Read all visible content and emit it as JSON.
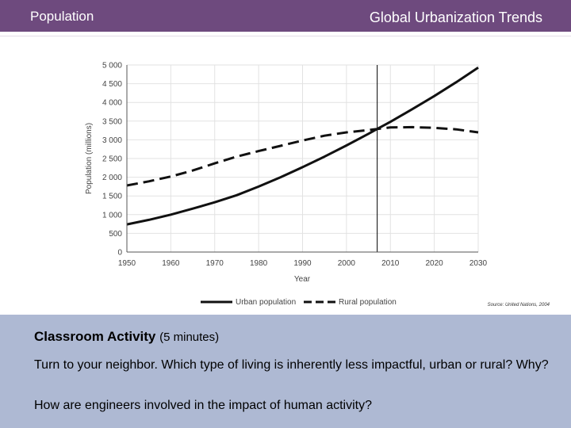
{
  "header": {
    "left_title": "Population",
    "right_title": "Global Urbanization Trends"
  },
  "chart_data": {
    "type": "line",
    "xlabel": "Year",
    "ylabel": "Population (millions)",
    "xlim": [
      1950,
      2030
    ],
    "ylim": [
      0,
      5000
    ],
    "x_ticks": [
      "1950",
      "1960",
      "1970",
      "1980",
      "1990",
      "2000",
      "2010",
      "2020",
      "2030"
    ],
    "y_ticks": [
      "0",
      "500",
      "1 000",
      "1 500",
      "2 000",
      "2 500",
      "3 000",
      "3 500",
      "4 000",
      "4 500",
      "5 000"
    ],
    "marker_year": 2007,
    "series": [
      {
        "name": "Urban population",
        "style": "solid",
        "x": [
          1950,
          1955,
          1960,
          1965,
          1970,
          1975,
          1980,
          1985,
          1990,
          1995,
          2000,
          2005,
          2007,
          2010,
          2015,
          2020,
          2025,
          2030
        ],
        "y": [
          740,
          860,
          1000,
          1160,
          1330,
          1520,
          1750,
          2000,
          2270,
          2550,
          2850,
          3160,
          3290,
          3480,
          3820,
          4170,
          4540,
          4930
        ]
      },
      {
        "name": "Rural population",
        "style": "dashed",
        "x": [
          1950,
          1955,
          1960,
          1965,
          1970,
          1975,
          1980,
          1985,
          1990,
          1995,
          2000,
          2005,
          2007,
          2010,
          2015,
          2020,
          2025,
          2030
        ],
        "y": [
          1780,
          1890,
          2020,
          2180,
          2370,
          2550,
          2700,
          2840,
          2980,
          3110,
          3200,
          3260,
          3290,
          3330,
          3340,
          3320,
          3280,
          3200
        ]
      }
    ],
    "source": "Source: United Nations, 2004",
    "legend_position": "bottom"
  },
  "activity": {
    "title": "Classroom Activity",
    "title_suffix": "(5 minutes)",
    "question1": "Turn to your neighbor. Which type of living is inherently less impactful, urban or rural?  Why?",
    "question2": "How are engineers involved in the impact of human activity?"
  }
}
